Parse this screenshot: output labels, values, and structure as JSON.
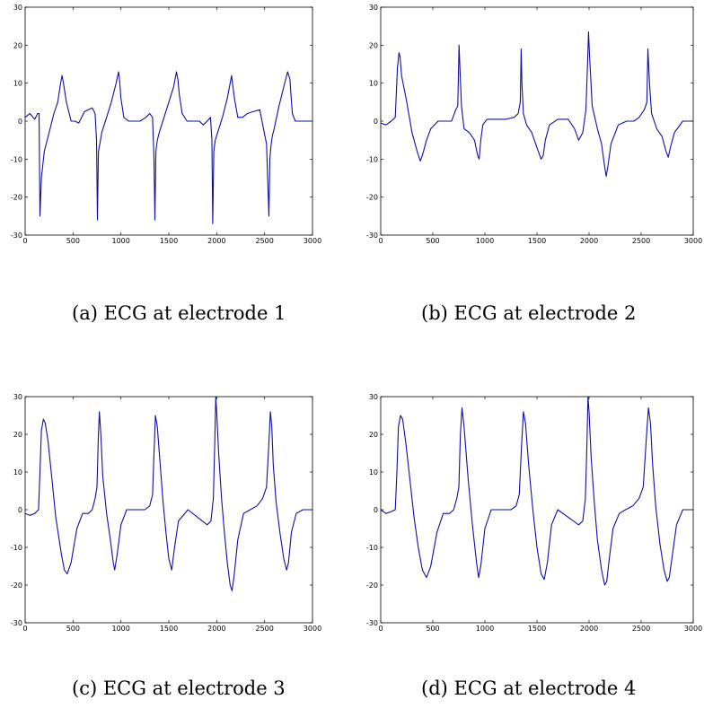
{
  "panels": [
    {
      "caption": "(a) ECG at electrode 1"
    },
    {
      "caption": "(b) ECG at electrode 2"
    },
    {
      "caption": "(c) ECG at electrode 3"
    },
    {
      "caption": "(d) ECG at electrode 4"
    }
  ],
  "line_color": "#1010a0",
  "chart_data": [
    {
      "type": "line",
      "xlim": [
        0,
        3000
      ],
      "ylim": [
        -30,
        30
      ],
      "xticks": [
        0,
        500,
        1000,
        1500,
        2000,
        2500,
        3000
      ],
      "yticks": [
        -30,
        -20,
        -10,
        0,
        10,
        20,
        30
      ],
      "grid": false,
      "series": [
        {
          "x": [
            0,
            50,
            100,
            130,
            145,
            155,
            170,
            200,
            250,
            300,
            340,
            370,
            385,
            400,
            430,
            480,
            520,
            560,
            590,
            620,
            660,
            700,
            730,
            745,
            755,
            765,
            780,
            800,
            850,
            900,
            950,
            975,
            985,
            1000,
            1030,
            1080,
            1120,
            1160,
            1200,
            1260,
            1300,
            1330,
            1345,
            1355,
            1365,
            1380,
            1400,
            1450,
            1500,
            1550,
            1580,
            1595,
            1610,
            1640,
            1690,
            1730,
            1780,
            1820,
            1860,
            1900,
            1935,
            1950,
            1958,
            1970,
            1985,
            2010,
            2060,
            2110,
            2140,
            2155,
            2165,
            2185,
            2220,
            2270,
            2320,
            2380,
            2450,
            2520,
            2545,
            2555,
            2565,
            2580,
            2600,
            2650,
            2700,
            2740,
            2765,
            2775,
            2790,
            2820,
            2870,
            2920,
            3000
          ],
          "y": [
            1,
            2,
            0.5,
            2,
            2,
            -25,
            -15,
            -8,
            -3,
            2,
            5,
            10,
            12,
            10,
            5,
            0,
            0,
            -0.5,
            1,
            2.5,
            3,
            3.5,
            2,
            -5,
            -26,
            -8,
            -6,
            -3,
            1,
            5,
            10,
            13,
            11,
            6,
            1,
            0,
            0,
            0,
            0,
            1,
            2,
            1,
            -10,
            -26,
            -8,
            -5,
            -3,
            1,
            5,
            9,
            13,
            11,
            7,
            2,
            0,
            0,
            0,
            0,
            -1,
            0,
            1,
            -5,
            -27,
            -8,
            -5,
            -3,
            1,
            6,
            10,
            12,
            10,
            6,
            1,
            1,
            2,
            2.5,
            3,
            -6,
            -25,
            -10,
            -7,
            -4,
            -2,
            4,
            9,
            13,
            11,
            7,
            2,
            0,
            0,
            0,
            0
          ]
        }
      ]
    },
    {
      "type": "line",
      "xlim": [
        0,
        3000
      ],
      "ylim": [
        -30,
        30
      ],
      "xticks": [
        0,
        500,
        1000,
        1500,
        2000,
        2500,
        3000
      ],
      "yticks": [
        -30,
        -20,
        -10,
        0,
        10,
        20,
        30
      ],
      "grid": false,
      "series": [
        {
          "x": [
            0,
            50,
            100,
            140,
            160,
            175,
            185,
            200,
            250,
            300,
            350,
            380,
            400,
            440,
            480,
            550,
            620,
            680,
            720,
            740,
            752,
            760,
            775,
            800,
            850,
            900,
            930,
            945,
            960,
            980,
            1020,
            1100,
            1200,
            1280,
            1320,
            1340,
            1348,
            1355,
            1370,
            1400,
            1450,
            1500,
            1540,
            1560,
            1580,
            1620,
            1700,
            1800,
            1860,
            1900,
            1940,
            1970,
            1985,
            1995,
            2005,
            2030,
            2080,
            2120,
            2150,
            2165,
            2180,
            2210,
            2280,
            2360,
            2430,
            2480,
            2530,
            2555,
            2565,
            2580,
            2600,
            2650,
            2700,
            2740,
            2760,
            2780,
            2820,
            2900,
            3000
          ],
          "y": [
            -0.5,
            -1,
            0,
            1,
            14,
            18,
            17,
            12,
            5,
            -3,
            -8,
            -10.5,
            -9,
            -5,
            -2,
            0,
            0,
            0,
            3,
            4,
            20,
            14,
            4,
            -2,
            -3,
            -5,
            -9,
            -10,
            -5,
            -1,
            0.5,
            0.5,
            0.5,
            1,
            2,
            5,
            19,
            10,
            2,
            -1,
            -3,
            -7,
            -10,
            -9,
            -5,
            -1,
            0.5,
            0.5,
            -2,
            -5,
            -3,
            3,
            15,
            23.5,
            17,
            4,
            -2,
            -6,
            -12,
            -14.5,
            -12,
            -6,
            -1,
            0,
            0,
            1,
            3,
            5,
            19,
            10,
            2,
            -2,
            -4,
            -8,
            -9.5,
            -7,
            -3,
            0,
            0
          ]
        }
      ]
    },
    {
      "type": "line",
      "xlim": [
        0,
        3000
      ],
      "ylim": [
        -30,
        30
      ],
      "xticks": [
        0,
        500,
        1000,
        1500,
        2000,
        2500,
        3000
      ],
      "yticks": [
        -30,
        -20,
        -10,
        0,
        10,
        20,
        30
      ],
      "grid": false,
      "series": [
        {
          "x": [
            0,
            50,
            100,
            140,
            155,
            170,
            190,
            210,
            240,
            280,
            320,
            350,
            380,
            410,
            440,
            480,
            540,
            600,
            660,
            700,
            730,
            750,
            765,
            775,
            790,
            810,
            850,
            890,
            920,
            935,
            960,
            1000,
            1060,
            1150,
            1250,
            1300,
            1330,
            1345,
            1360,
            1380,
            1410,
            1440,
            1470,
            1500,
            1530,
            1560,
            1600,
            1700,
            1800,
            1900,
            1940,
            1965,
            1980,
            1990,
            2000,
            2020,
            2050,
            2080,
            2110,
            2140,
            2160,
            2180,
            2220,
            2280,
            2350,
            2420,
            2480,
            2520,
            2545,
            2560,
            2575,
            2590,
            2620,
            2660,
            2700,
            2730,
            2750,
            2780,
            2830,
            2900,
            3000
          ],
          "y": [
            -1,
            -1.5,
            -1,
            0,
            10,
            21,
            24,
            23,
            18,
            8,
            -2,
            -7,
            -12,
            -16,
            -17,
            -14,
            -5,
            -1,
            -1,
            0,
            3,
            6,
            20,
            26,
            20,
            9,
            -1,
            -8,
            -14,
            -16,
            -12,
            -4,
            0,
            0,
            0,
            1,
            4,
            15,
            25,
            22,
            12,
            2,
            -6,
            -13,
            -16,
            -10,
            -3,
            0,
            -2,
            -4,
            -3,
            3,
            18,
            30,
            26,
            15,
            3,
            -6,
            -14,
            -20,
            -21.5,
            -18,
            -8,
            -1,
            0,
            1,
            3,
            6,
            18,
            26,
            22,
            12,
            2,
            -6,
            -13,
            -16,
            -14,
            -6,
            -1,
            0,
            0
          ]
        }
      ]
    },
    {
      "type": "line",
      "xlim": [
        0,
        3000
      ],
      "ylim": [
        -30,
        30
      ],
      "xticks": [
        0,
        500,
        1000,
        1500,
        2000,
        2500,
        3000
      ],
      "yticks": [
        -30,
        -20,
        -10,
        0,
        10,
        20,
        30
      ],
      "grid": false,
      "series": [
        {
          "x": [
            0,
            50,
            100,
            140,
            155,
            170,
            190,
            210,
            240,
            280,
            320,
            360,
            400,
            440,
            480,
            540,
            600,
            660,
            700,
            730,
            750,
            765,
            780,
            800,
            840,
            880,
            920,
            940,
            960,
            1000,
            1060,
            1150,
            1250,
            1300,
            1330,
            1350,
            1370,
            1390,
            1420,
            1460,
            1500,
            1540,
            1570,
            1600,
            1640,
            1700,
            1800,
            1900,
            1940,
            1965,
            1980,
            1990,
            2000,
            2020,
            2050,
            2080,
            2120,
            2150,
            2170,
            2190,
            2230,
            2290,
            2350,
            2420,
            2480,
            2520,
            2550,
            2570,
            2590,
            2610,
            2640,
            2680,
            2720,
            2750,
            2770,
            2800,
            2840,
            2900,
            3000
          ],
          "y": [
            0,
            -1,
            -0.5,
            0,
            10,
            22,
            25,
            24,
            18,
            8,
            -2,
            -10,
            -16,
            -18,
            -15,
            -6,
            -1,
            -1,
            0,
            3,
            6,
            20,
            27,
            22,
            8,
            -4,
            -14,
            -18,
            -15,
            -5,
            0,
            0,
            0,
            1,
            4,
            16,
            26,
            23,
            12,
            0,
            -10,
            -17,
            -18.5,
            -14,
            -4,
            0,
            -2,
            -4,
            -3,
            3,
            18,
            30,
            26,
            14,
            2,
            -8,
            -16,
            -20,
            -19,
            -14,
            -5,
            -1,
            0,
            1,
            3,
            6,
            19,
            27,
            23,
            12,
            1,
            -9,
            -16,
            -19,
            -18,
            -12,
            -4,
            0,
            0
          ]
        }
      ]
    }
  ]
}
